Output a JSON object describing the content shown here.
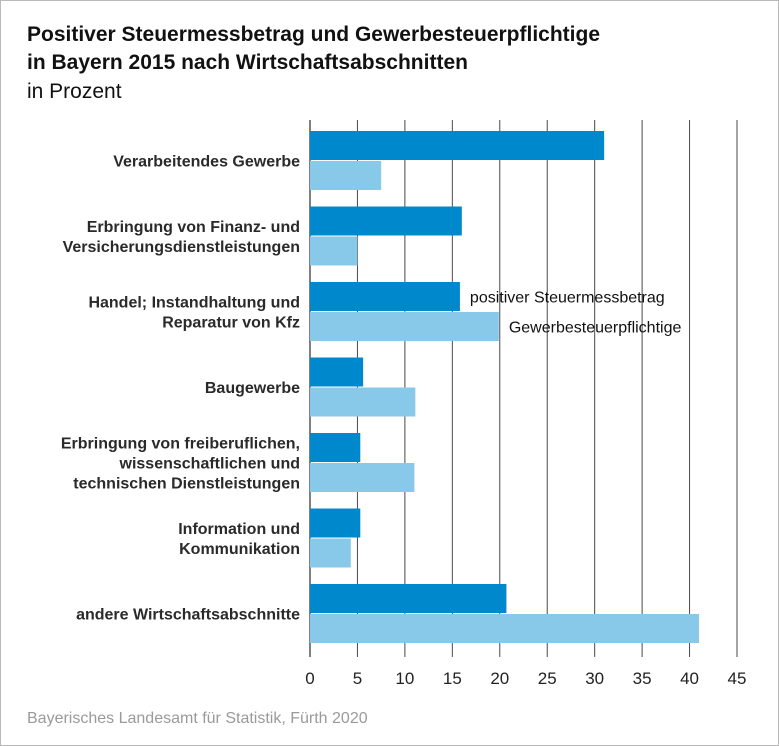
{
  "header": {
    "title_line1": "Positiver Steuermessbetrag und Gewerbesteuerpflichtige",
    "title_line2": "in Bayern 2015 nach Wirtschaftsabschnitten",
    "subtitle": "in Prozent"
  },
  "footer": {
    "source": "Bayerisches Landesamt für Statistik, Fürth 2020"
  },
  "colors": {
    "series1": "#0088cc",
    "series2": "#88c9ea",
    "grid": "#4a4a4a"
  },
  "chart_data": {
    "type": "bar",
    "orientation": "horizontal",
    "title": "Positiver Steuermessbetrag und Gewerbesteuerpflichtige in Bayern 2015 nach Wirtschaftsabschnitten",
    "unit": "in Prozent",
    "categories": [
      [
        "Verarbeitendes Gewerbe"
      ],
      [
        "Erbringung von Finanz- und",
        "Versicherungsdienstleistungen"
      ],
      [
        "Handel; Instandhaltung und",
        "Reparatur von Kfz"
      ],
      [
        "Baugewerbe"
      ],
      [
        "Erbringung von freiberuflichen,",
        "wissenschaftlichen und",
        "technischen Dienstleistungen"
      ],
      [
        "Information und",
        "Kommunikation"
      ],
      [
        "andere Wirtschaftsabschnitte"
      ]
    ],
    "series": [
      {
        "name": "positiver Steuermessbetrag",
        "values": [
          31.0,
          16.0,
          15.8,
          5.6,
          5.3,
          5.3,
          20.7
        ]
      },
      {
        "name": "Gewerbesteuerpflichtige",
        "values": [
          7.5,
          5.0,
          19.9,
          11.1,
          11.0,
          4.3,
          41.0
        ]
      }
    ],
    "xlim": [
      0,
      45
    ],
    "xticks": [
      0,
      5,
      10,
      15,
      20,
      25,
      30,
      35,
      40,
      45
    ],
    "grid": true,
    "legend": "inline next to Handel bars"
  }
}
